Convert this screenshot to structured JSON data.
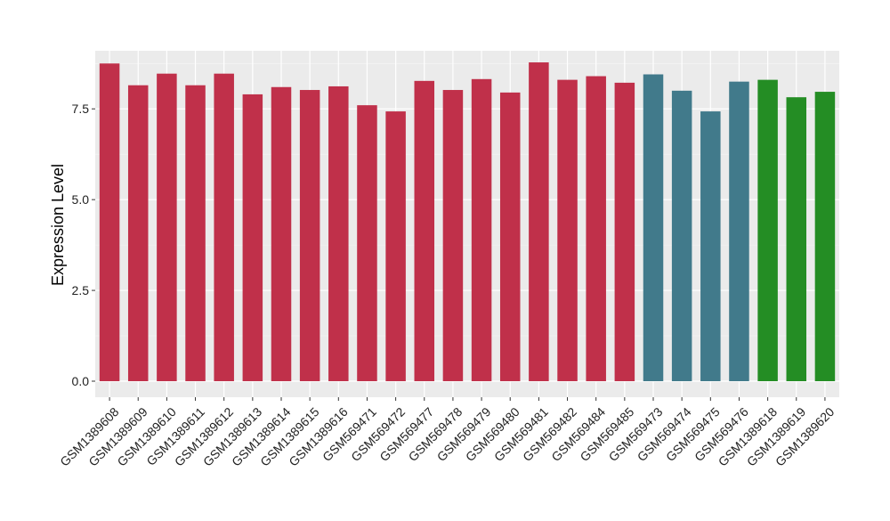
{
  "chart_data": {
    "type": "bar",
    "ylabel": "Expression Level",
    "xlabel": "",
    "ylim": [
      0,
      9.1
    ],
    "yticks": [
      0.0,
      2.5,
      5.0,
      7.5
    ],
    "ytick_labels": [
      "0.0",
      "2.5",
      "5.0",
      "7.5"
    ],
    "grid": true,
    "legend": "none",
    "background": "#ebebeb",
    "colors": {
      "group1": "#c0304a",
      "group2": "#417a8b",
      "group3": "#248d24"
    },
    "categories": [
      "GSM1389608",
      "GSM1389609",
      "GSM1389610",
      "GSM1389611",
      "GSM1389612",
      "GSM1389613",
      "GSM1389614",
      "GSM1389615",
      "GSM1389616",
      "GSM569471",
      "GSM569472",
      "GSM569477",
      "GSM569478",
      "GSM569479",
      "GSM569480",
      "GSM569481",
      "GSM569482",
      "GSM569484",
      "GSM569485",
      "GSM569473",
      "GSM569474",
      "GSM569475",
      "GSM569476",
      "GSM1389618",
      "GSM1389619",
      "GSM1389620"
    ],
    "values": [
      8.75,
      8.15,
      8.47,
      8.15,
      8.47,
      7.9,
      8.1,
      8.02,
      8.12,
      7.6,
      7.43,
      8.27,
      8.02,
      8.32,
      7.95,
      8.78,
      8.3,
      8.4,
      8.22,
      8.45,
      8.0,
      7.43,
      8.25,
      8.3,
      7.82,
      7.97
    ],
    "groups": [
      "group1",
      "group1",
      "group1",
      "group1",
      "group1",
      "group1",
      "group1",
      "group1",
      "group1",
      "group1",
      "group1",
      "group1",
      "group1",
      "group1",
      "group1",
      "group1",
      "group1",
      "group1",
      "group1",
      "group2",
      "group2",
      "group2",
      "group2",
      "group3",
      "group3",
      "group3"
    ]
  }
}
